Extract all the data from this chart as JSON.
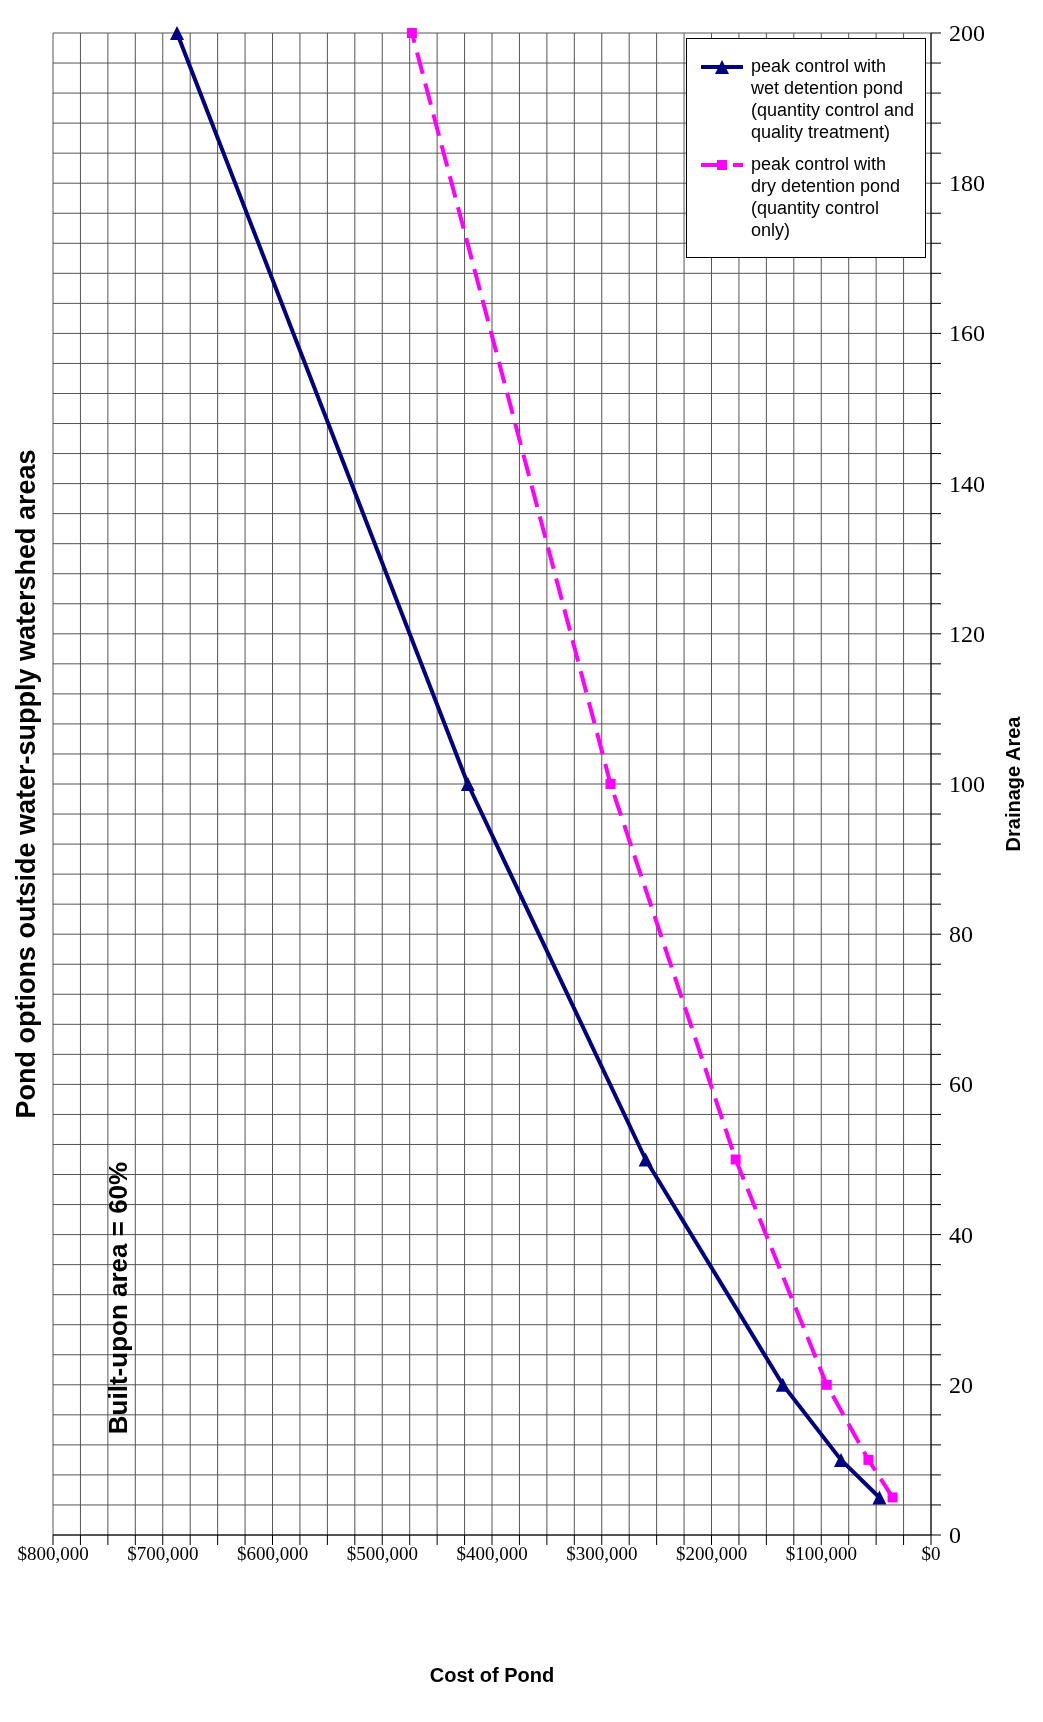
{
  "chart_data": {
    "type": "line",
    "title": "Pond options outside water-supply watershed areas",
    "xlabel": "Cost of Pond",
    "ylabel": "Drainage Area",
    "annotations": [
      "Built-upon area = 60%"
    ],
    "series": [
      {
        "name": "peak control with wet detention pond (quantity control and quality treatment)",
        "color": "#000080",
        "x": [
          47000,
          82000,
          135000,
          260000,
          422000,
          687000
        ],
        "values": [
          5,
          10,
          20,
          50,
          100,
          200
        ],
        "marker": "triangle",
        "line_style": "solid"
      },
      {
        "name": "peak control with dry detention pond (quantity control only)",
        "color": "#ff00ff",
        "x": [
          35000,
          57000,
          95000,
          178000,
          292000,
          473000
        ],
        "values": [
          5,
          10,
          20,
          50,
          100,
          200
        ],
        "marker": "square",
        "line_style": "dashed"
      }
    ],
    "ylim": [
      0,
      200
    ],
    "yticks": [
      0,
      {
        "value": 4,
        "label": null
      },
      {
        "value": 8,
        "label": null
      },
      {
        "value": 12,
        "label": null
      },
      {
        "value": 16,
        "label": null
      },
      20,
      {
        "value": 24,
        "label": null
      },
      {
        "value": 28,
        "label": null
      },
      {
        "value": 32,
        "label": null
      },
      {
        "value": 36,
        "label": null
      },
      40,
      {
        "value": 44,
        "label": null
      },
      {
        "value": 48,
        "label": null
      },
      {
        "value": 52,
        "label": null
      },
      {
        "value": 56,
        "label": null
      },
      60,
      {
        "value": 64,
        "label": null
      },
      {
        "value": 68,
        "label": null
      },
      {
        "value": 72,
        "label": null
      },
      {
        "value": 76,
        "label": null
      },
      80,
      {
        "value": 84,
        "label": null
      },
      {
        "value": 88,
        "label": null
      },
      {
        "value": 92,
        "label": null
      },
      {
        "value": 96,
        "label": null
      },
      100,
      {
        "value": 104,
        "label": null
      },
      {
        "value": 108,
        "label": null
      },
      {
        "value": 112,
        "label": null
      },
      {
        "value": 116,
        "label": null
      },
      120,
      {
        "value": 124,
        "label": null
      },
      {
        "value": 128,
        "label": null
      },
      {
        "value": 132,
        "label": null
      },
      {
        "value": 136,
        "label": null
      },
      140,
      {
        "value": 144,
        "label": null
      },
      {
        "value": 148,
        "label": null
      },
      {
        "value": 152,
        "label": null
      },
      {
        "value": 156,
        "label": null
      },
      160,
      {
        "value": 164,
        "label": null
      },
      {
        "value": 168,
        "label": null
      },
      {
        "value": 172,
        "label": null
      },
      {
        "value": 176,
        "label": null
      },
      180,
      {
        "value": 184,
        "label": null
      },
      {
        "value": 188,
        "label": null
      },
      {
        "value": 192,
        "label": null
      },
      {
        "value": 196,
        "label": null
      },
      200
    ],
    "xlim": [
      800000,
      0
    ],
    "xticks": [
      {
        "value": 0,
        "label": "$0"
      },
      {
        "value": 25000,
        "label": null
      },
      {
        "value": 50000,
        "label": null
      },
      {
        "value": 75000,
        "label": null
      },
      {
        "value": 100000,
        "label": "$100,000"
      },
      {
        "value": 125000,
        "label": null
      },
      {
        "value": 150000,
        "label": null
      },
      {
        "value": 175000,
        "label": null
      },
      {
        "value": 200000,
        "label": "$200,000"
      },
      {
        "value": 225000,
        "label": null
      },
      {
        "value": 250000,
        "label": null
      },
      {
        "value": 275000,
        "label": null
      },
      {
        "value": 300000,
        "label": "$300,000"
      },
      {
        "value": 325000,
        "label": null
      },
      {
        "value": 350000,
        "label": null
      },
      {
        "value": 375000,
        "label": null
      },
      {
        "value": 400000,
        "label": "$400,000"
      },
      {
        "value": 425000,
        "label": null
      },
      {
        "value": 450000,
        "label": null
      },
      {
        "value": 475000,
        "label": null
      },
      {
        "value": 500000,
        "label": "$500,000"
      },
      {
        "value": 525000,
        "label": null
      },
      {
        "value": 550000,
        "label": null
      },
      {
        "value": 575000,
        "label": null
      },
      {
        "value": 600000,
        "label": "$600,000"
      },
      {
        "value": 625000,
        "label": null
      },
      {
        "value": 650000,
        "label": null
      },
      {
        "value": 675000,
        "label": null
      },
      {
        "value": 700000,
        "label": "$700,000"
      },
      {
        "value": 725000,
        "label": null
      },
      {
        "value": 750000,
        "label": null
      },
      {
        "value": 775000,
        "label": null
      },
      {
        "value": 800000,
        "label": "$800,000"
      }
    ],
    "grid": true,
    "legend": "top right"
  }
}
